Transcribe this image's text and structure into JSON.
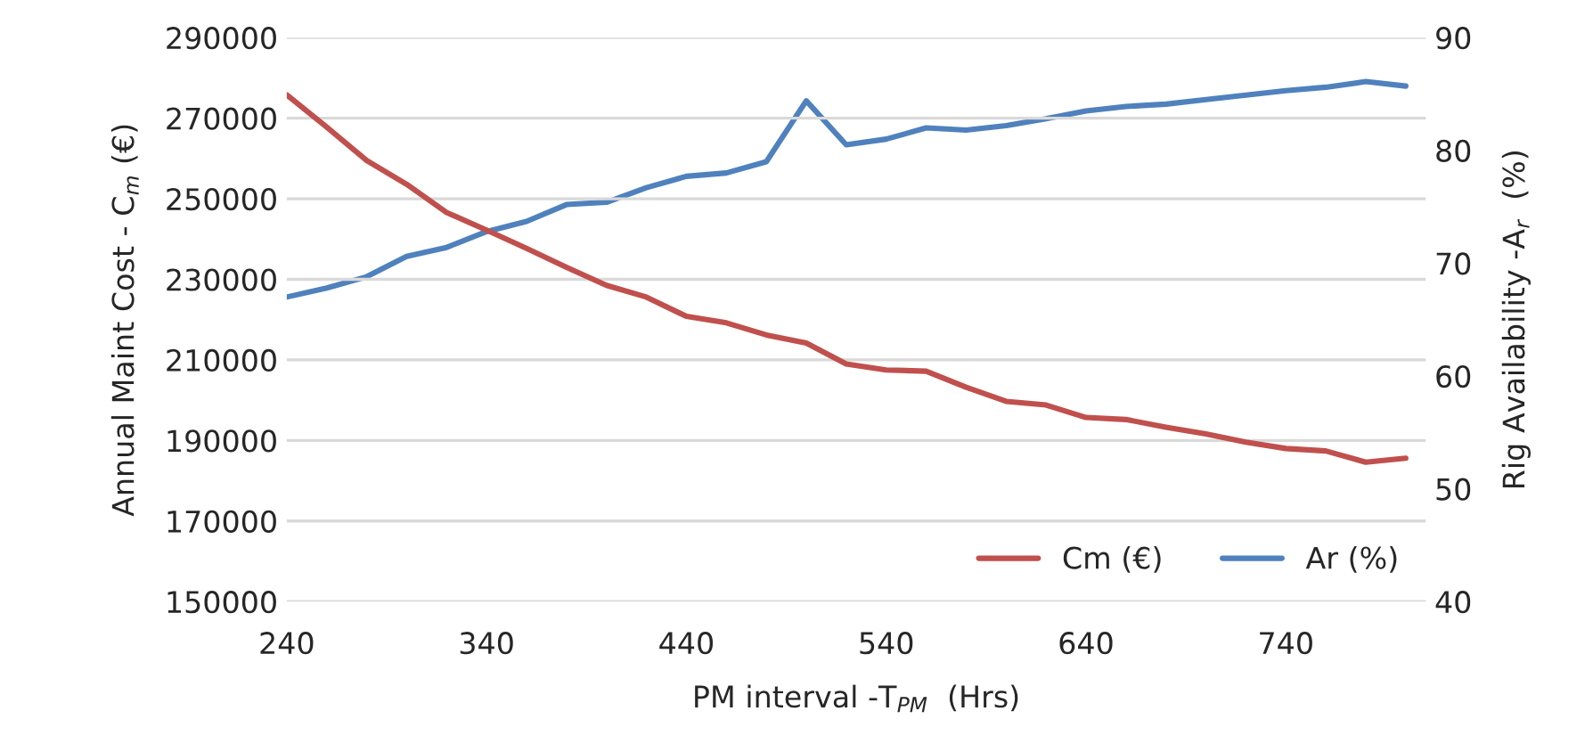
{
  "chart_data": {
    "type": "line",
    "xlabel": "PM interval -T$_{PM}$  (Hrs)",
    "ylabel": "Annual Maint Cost - C$_{m}$ (€)",
    "y2label": "Rig Availability -A$_{r}$  (%)",
    "x": [
      240,
      260,
      280,
      300,
      320,
      340,
      360,
      380,
      400,
      420,
      440,
      460,
      480,
      500,
      520,
      540,
      560,
      580,
      600,
      620,
      640,
      660,
      680,
      700,
      720,
      740,
      760,
      780,
      800
    ],
    "series": [
      {
        "name": "Cm (€)",
        "color": "#c0504d",
        "values": [
          275800,
          267800,
          259500,
          253600,
          246600,
          242200,
          237700,
          233000,
          228500,
          225600,
          220800,
          219200,
          216200,
          214200,
          209000,
          207500,
          207200,
          203200,
          199700,
          198800,
          195700,
          195200,
          193300,
          191600,
          189600,
          188000,
          187400,
          184600,
          185600
        ]
      },
      {
        "name": "Ar (%)",
        "color": "#4f81bd",
        "axis": "y2",
        "values": [
          67.0,
          67.8,
          68.8,
          70.6,
          71.4,
          72.8,
          73.7,
          75.2,
          75.4,
          76.7,
          77.7,
          78.0,
          79.0,
          84.4,
          80.5,
          81.0,
          82.0,
          81.8,
          82.2,
          82.8,
          83.5,
          83.9,
          84.1,
          84.5,
          84.9,
          85.3,
          85.6,
          86.1,
          85.7
        ]
      }
    ],
    "xlim": [
      240,
      810
    ],
    "xticks": [
      240,
      340,
      440,
      540,
      640,
      740
    ],
    "ylim": [
      150000,
      290000
    ],
    "yticks": [
      150000,
      170000,
      190000,
      210000,
      230000,
      250000,
      270000,
      290000
    ],
    "y2lim": [
      40,
      90
    ],
    "y2ticks": [
      40,
      50,
      60,
      70,
      80,
      90
    ],
    "grid": "y",
    "legend": "bottom right",
    "marker": "none",
    "line_style": "solid"
  }
}
